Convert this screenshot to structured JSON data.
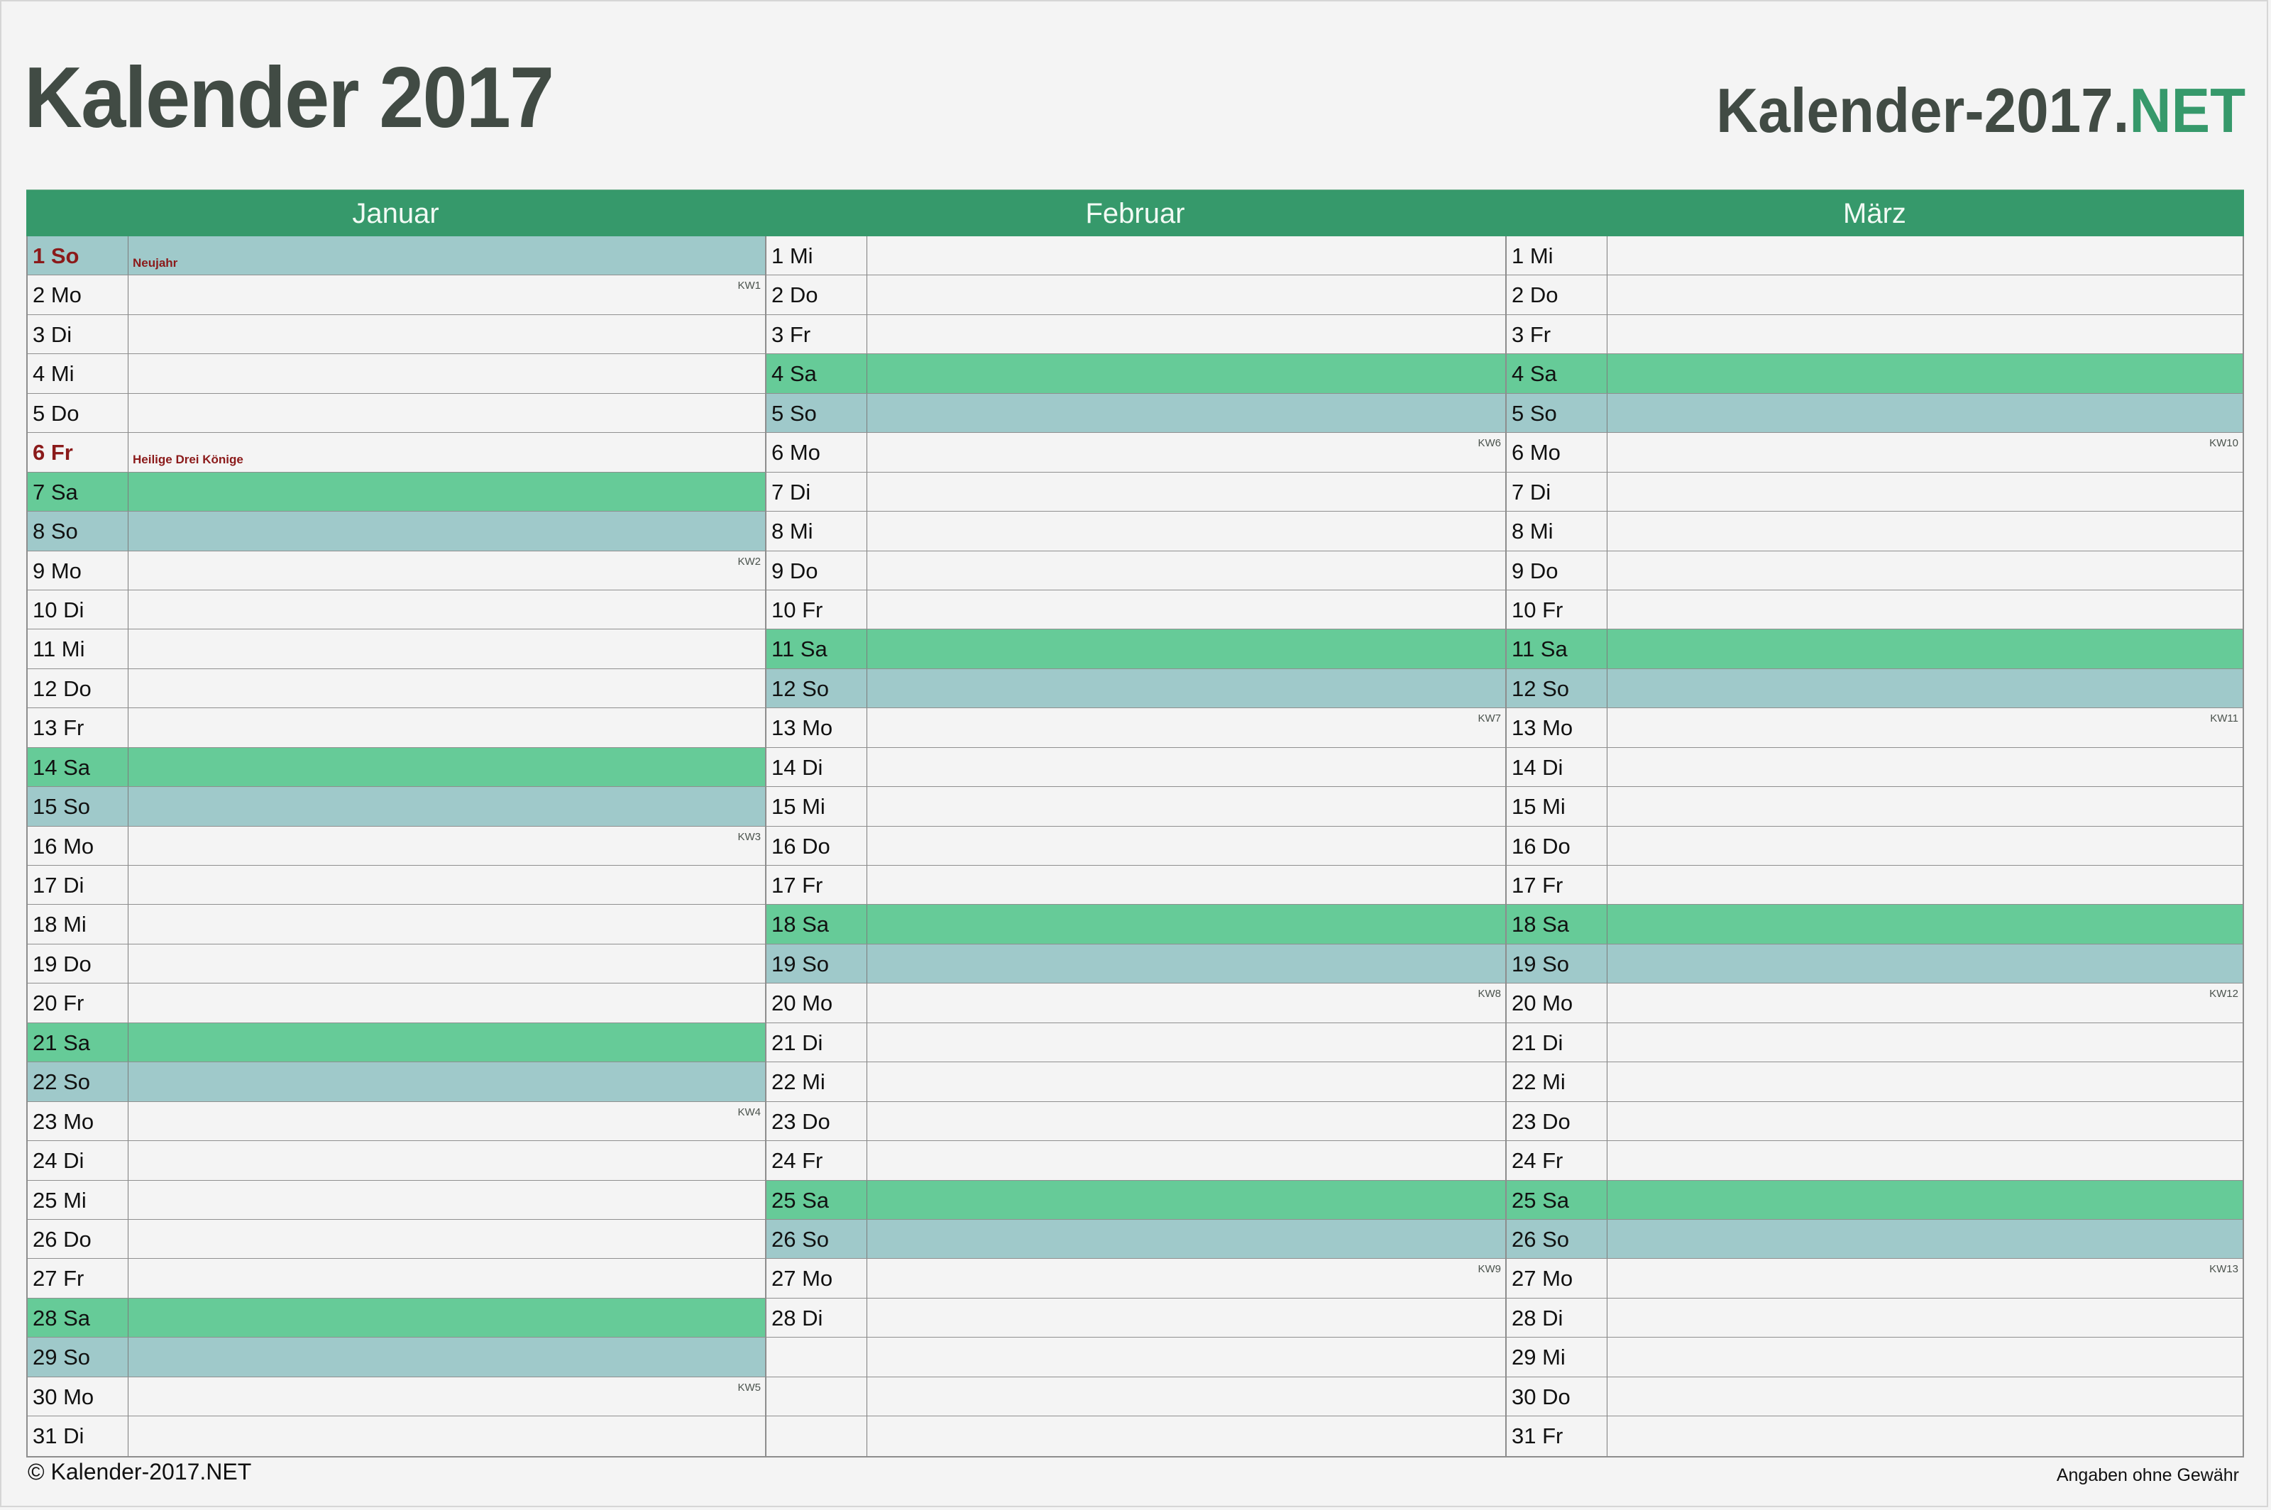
{
  "header": {
    "title": "Kalender 2017",
    "brand_main": "Kalender-2017.",
    "brand_tld": "NET"
  },
  "colors": {
    "header_green": "#36996b",
    "saturday": "#66cb98",
    "sunday": "#9fc9ca",
    "holiday_text": "#8b1a1a",
    "title_text": "#414b44",
    "background": "#f4f4f4"
  },
  "months": [
    {
      "name": "Januar",
      "days": [
        {
          "label": "1 So",
          "type": "sun",
          "holiday": "Neujahr"
        },
        {
          "label": "2 Mo",
          "type": "wd",
          "kw": "KW1"
        },
        {
          "label": "3 Di",
          "type": "wd"
        },
        {
          "label": "4 Mi",
          "type": "wd"
        },
        {
          "label": "5 Do",
          "type": "wd"
        },
        {
          "label": "6 Fr",
          "type": "wd",
          "holiday": "Heilige Drei Könige"
        },
        {
          "label": "7 Sa",
          "type": "sat"
        },
        {
          "label": "8 So",
          "type": "sun"
        },
        {
          "label": "9 Mo",
          "type": "wd",
          "kw": "KW2"
        },
        {
          "label": "10 Di",
          "type": "wd"
        },
        {
          "label": "11 Mi",
          "type": "wd"
        },
        {
          "label": "12 Do",
          "type": "wd"
        },
        {
          "label": "13 Fr",
          "type": "wd"
        },
        {
          "label": "14 Sa",
          "type": "sat"
        },
        {
          "label": "15 So",
          "type": "sun"
        },
        {
          "label": "16 Mo",
          "type": "wd",
          "kw": "KW3"
        },
        {
          "label": "17 Di",
          "type": "wd"
        },
        {
          "label": "18 Mi",
          "type": "wd"
        },
        {
          "label": "19 Do",
          "type": "wd"
        },
        {
          "label": "20 Fr",
          "type": "wd"
        },
        {
          "label": "21 Sa",
          "type": "sat"
        },
        {
          "label": "22 So",
          "type": "sun"
        },
        {
          "label": "23 Mo",
          "type": "wd",
          "kw": "KW4"
        },
        {
          "label": "24 Di",
          "type": "wd"
        },
        {
          "label": "25 Mi",
          "type": "wd"
        },
        {
          "label": "26 Do",
          "type": "wd"
        },
        {
          "label": "27 Fr",
          "type": "wd"
        },
        {
          "label": "28 Sa",
          "type": "sat"
        },
        {
          "label": "29 So",
          "type": "sun"
        },
        {
          "label": "30 Mo",
          "type": "wd",
          "kw": "KW5"
        },
        {
          "label": "31 Di",
          "type": "wd"
        }
      ]
    },
    {
      "name": "Februar",
      "days": [
        {
          "label": "1 Mi",
          "type": "wd"
        },
        {
          "label": "2 Do",
          "type": "wd"
        },
        {
          "label": "3 Fr",
          "type": "wd"
        },
        {
          "label": "4 Sa",
          "type": "sat"
        },
        {
          "label": "5 So",
          "type": "sun"
        },
        {
          "label": "6 Mo",
          "type": "wd",
          "kw": "KW6"
        },
        {
          "label": "7 Di",
          "type": "wd"
        },
        {
          "label": "8 Mi",
          "type": "wd"
        },
        {
          "label": "9 Do",
          "type": "wd"
        },
        {
          "label": "10 Fr",
          "type": "wd"
        },
        {
          "label": "11 Sa",
          "type": "sat"
        },
        {
          "label": "12 So",
          "type": "sun"
        },
        {
          "label": "13 Mo",
          "type": "wd",
          "kw": "KW7"
        },
        {
          "label": "14 Di",
          "type": "wd"
        },
        {
          "label": "15 Mi",
          "type": "wd"
        },
        {
          "label": "16 Do",
          "type": "wd"
        },
        {
          "label": "17 Fr",
          "type": "wd"
        },
        {
          "label": "18 Sa",
          "type": "sat"
        },
        {
          "label": "19 So",
          "type": "sun"
        },
        {
          "label": "20 Mo",
          "type": "wd",
          "kw": "KW8"
        },
        {
          "label": "21 Di",
          "type": "wd"
        },
        {
          "label": "22 Mi",
          "type": "wd"
        },
        {
          "label": "23 Do",
          "type": "wd"
        },
        {
          "label": "24 Fr",
          "type": "wd"
        },
        {
          "label": "25 Sa",
          "type": "sat"
        },
        {
          "label": "26 So",
          "type": "sun"
        },
        {
          "label": "27 Mo",
          "type": "wd",
          "kw": "KW9"
        },
        {
          "label": "28 Di",
          "type": "wd"
        },
        {
          "label": "",
          "type": "empty"
        },
        {
          "label": "",
          "type": "empty"
        },
        {
          "label": "",
          "type": "empty"
        }
      ]
    },
    {
      "name": "März",
      "days": [
        {
          "label": "1 Mi",
          "type": "wd"
        },
        {
          "label": "2 Do",
          "type": "wd"
        },
        {
          "label": "3 Fr",
          "type": "wd"
        },
        {
          "label": "4 Sa",
          "type": "sat"
        },
        {
          "label": "5 So",
          "type": "sun"
        },
        {
          "label": "6 Mo",
          "type": "wd",
          "kw": "KW10"
        },
        {
          "label": "7 Di",
          "type": "wd"
        },
        {
          "label": "8 Mi",
          "type": "wd"
        },
        {
          "label": "9 Do",
          "type": "wd"
        },
        {
          "label": "10 Fr",
          "type": "wd"
        },
        {
          "label": "11 Sa",
          "type": "sat"
        },
        {
          "label": "12 So",
          "type": "sun"
        },
        {
          "label": "13 Mo",
          "type": "wd",
          "kw": "KW11"
        },
        {
          "label": "14 Di",
          "type": "wd"
        },
        {
          "label": "15 Mi",
          "type": "wd"
        },
        {
          "label": "16 Do",
          "type": "wd"
        },
        {
          "label": "17 Fr",
          "type": "wd"
        },
        {
          "label": "18 Sa",
          "type": "sat"
        },
        {
          "label": "19 So",
          "type": "sun"
        },
        {
          "label": "20 Mo",
          "type": "wd",
          "kw": "KW12"
        },
        {
          "label": "21 Di",
          "type": "wd"
        },
        {
          "label": "22 Mi",
          "type": "wd"
        },
        {
          "label": "23 Do",
          "type": "wd"
        },
        {
          "label": "24 Fr",
          "type": "wd"
        },
        {
          "label": "25 Sa",
          "type": "sat"
        },
        {
          "label": "26 So",
          "type": "sun"
        },
        {
          "label": "27 Mo",
          "type": "wd",
          "kw": "KW13"
        },
        {
          "label": "28 Di",
          "type": "wd"
        },
        {
          "label": "29 Mi",
          "type": "wd"
        },
        {
          "label": "30 Do",
          "type": "wd"
        },
        {
          "label": "31 Fr",
          "type": "wd"
        }
      ]
    }
  ],
  "footer": {
    "copyright": "© Kalender-2017.NET",
    "disclaimer": "Angaben ohne Gewähr"
  }
}
